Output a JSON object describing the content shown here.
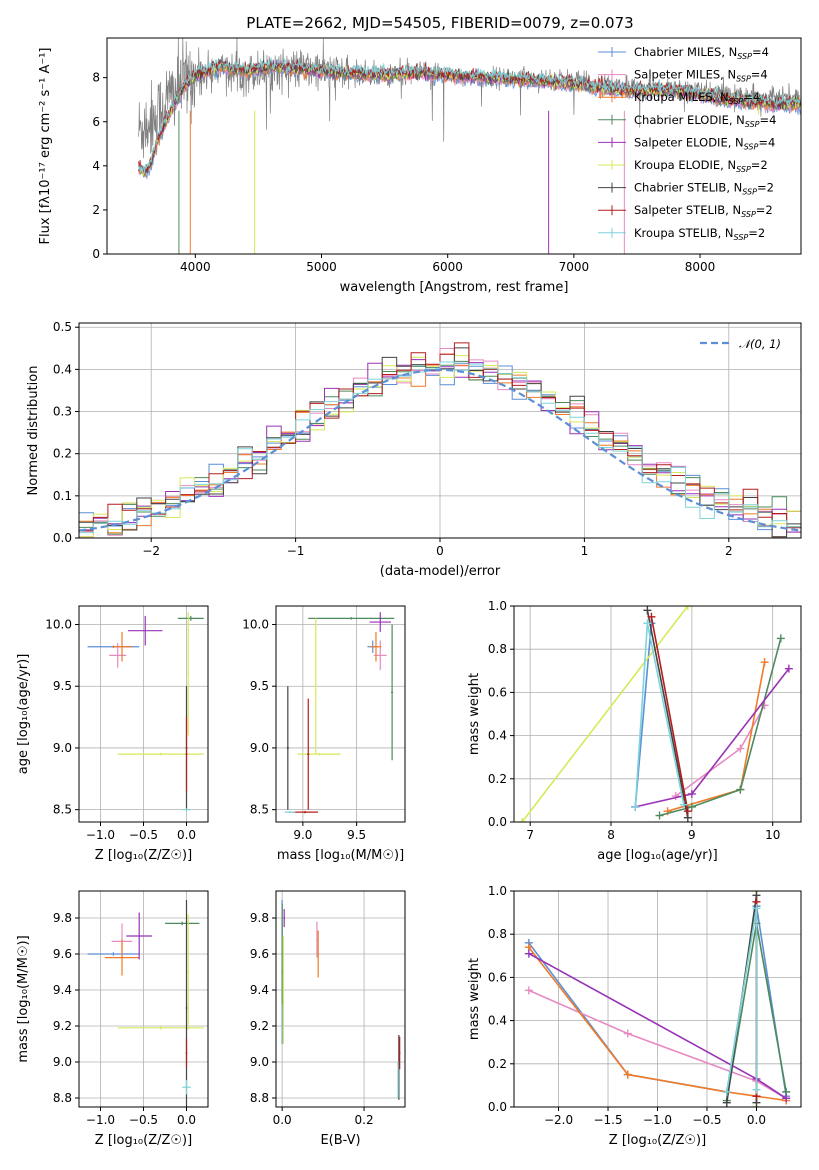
{
  "figure": {
    "title": "PLATE=2662, MJD=54505, FIBERID=0079, z=0.073"
  },
  "models": [
    {
      "name": "Chabrier MILES",
      "nssp": "4",
      "color": "#5b8fd6"
    },
    {
      "name": "Salpeter MILES",
      "nssp": "4",
      "color": "#e78ac3"
    },
    {
      "name": "Kroupa MILES",
      "nssp": "4",
      "color": "#f07b28"
    },
    {
      "name": "Chabrier ELODIE",
      "nssp": "4",
      "color": "#4f8a5e"
    },
    {
      "name": "Salpeter ELODIE",
      "nssp": "4",
      "color": "#9a32b6"
    },
    {
      "name": "Kroupa ELODIE",
      "nssp": "2",
      "color": "#d8e85a"
    },
    {
      "name": "Chabrier STELIB",
      "nssp": "2",
      "color": "#444444"
    },
    {
      "name": "Salpeter STELIB",
      "nssp": "2",
      "color": "#b41d1d"
    },
    {
      "name": "Kroupa STELIB",
      "nssp": "2",
      "color": "#7fd3da"
    }
  ],
  "chart_data": [
    {
      "id": "spectrum",
      "type": "line",
      "xlabel": "wavelength [Angstrom, rest frame]",
      "ylabel": "Flux [fλ10⁻¹⁷ erg cm⁻² s⁻¹ A⁻¹]",
      "xlim": [
        3300,
        8800
      ],
      "ylim": [
        0,
        9.8
      ],
      "xticks": [
        4000,
        5000,
        6000,
        7000,
        8000
      ],
      "yticks": [
        0,
        2,
        4,
        6,
        8
      ],
      "observed_color": "#808080",
      "observed_continuum": [
        [
          3550,
          5.6
        ],
        [
          3700,
          6.3
        ],
        [
          3800,
          7.2
        ],
        [
          3900,
          7.8
        ],
        [
          4000,
          8.2
        ],
        [
          4200,
          8.4
        ],
        [
          4400,
          8.2
        ],
        [
          4600,
          8.4
        ],
        [
          4800,
          8.4
        ],
        [
          5000,
          8.3
        ],
        [
          5200,
          8.2
        ],
        [
          5500,
          8.1
        ],
        [
          5800,
          8.2
        ],
        [
          6000,
          8.1
        ],
        [
          6300,
          8.0
        ],
        [
          6600,
          8.0
        ],
        [
          7000,
          7.9
        ],
        [
          7200,
          7.7
        ],
        [
          7500,
          7.6
        ],
        [
          7800,
          7.5
        ],
        [
          8000,
          7.4
        ],
        [
          8200,
          7.3
        ],
        [
          8400,
          7.2
        ],
        [
          8600,
          7.1
        ],
        [
          8800,
          7.1
        ]
      ],
      "model_continuum": [
        [
          3550,
          3.9
        ],
        [
          3600,
          3.7
        ],
        [
          3650,
          4.1
        ],
        [
          3700,
          5.2
        ],
        [
          3800,
          6.4
        ],
        [
          3900,
          7.5
        ],
        [
          4000,
          8.1
        ],
        [
          4200,
          8.5
        ],
        [
          4400,
          8.3
        ],
        [
          4600,
          8.5
        ],
        [
          4800,
          8.4
        ],
        [
          5000,
          8.3
        ],
        [
          5200,
          8.2
        ],
        [
          5500,
          8.1
        ],
        [
          5800,
          8.2
        ],
        [
          6000,
          8.1
        ],
        [
          6300,
          8.0
        ],
        [
          6600,
          7.9
        ],
        [
          7000,
          7.7
        ],
        [
          7200,
          7.5
        ],
        [
          7500,
          7.4
        ],
        [
          7800,
          7.4
        ],
        [
          8000,
          7.2
        ],
        [
          8200,
          7.0
        ],
        [
          8400,
          6.9
        ],
        [
          8600,
          6.8
        ],
        [
          8800,
          6.8
        ]
      ],
      "legend_position": "right"
    },
    {
      "id": "residuals",
      "type": "bar",
      "xlabel": "(data-model)/error",
      "ylabel": "Normed distribution",
      "xlim": [
        -2.5,
        2.5
      ],
      "ylim": [
        0,
        0.51
      ],
      "xticks": [
        -2,
        -1,
        0,
        1,
        2
      ],
      "yticks": [
        0.0,
        0.1,
        0.2,
        0.3,
        0.4,
        0.5
      ],
      "bin_width": 0.1,
      "gaussian_label": "𝒩(0, 1)",
      "gaussian_color": "#5b8fd6",
      "legend_position": "upper right",
      "grid": true
    },
    {
      "id": "age_vs_Z",
      "type": "scatter",
      "xlabel": "Z [log₁₀(Z/Z☉)]",
      "ylabel": "age  [log₁₀(age/yr)]",
      "xlim": [
        -1.25,
        0.25
      ],
      "ylim": [
        8.4,
        10.15
      ],
      "xticks": [
        -1.0,
        -0.5,
        0.0
      ],
      "yticks": [
        8.5,
        9.0,
        9.5,
        10.0
      ],
      "crosses": [
        {
          "m": 0,
          "x": -0.85,
          "y": 9.82,
          "ex": 0.3,
          "ey": 0.01
        },
        {
          "m": 1,
          "x": -0.8,
          "y": 9.75,
          "ex": 0.1,
          "ey": 0.1
        },
        {
          "m": 2,
          "x": -0.75,
          "y": 9.82,
          "ex": 0.12,
          "ey": 0.12
        },
        {
          "m": 3,
          "x": 0.05,
          "y": 10.05,
          "ex": 0.15,
          "ey": 0.02
        },
        {
          "m": 4,
          "x": -0.48,
          "y": 9.95,
          "ex": 0.2,
          "ey": 0.12
        },
        {
          "m": 5,
          "x": -0.3,
          "y": 8.95,
          "ex": 0.5,
          "ey": 0.01
        },
        {
          "m": 6,
          "x": 0.0,
          "y": 9.0,
          "ex": 0.01,
          "ey": 0.5
        },
        {
          "m": 7,
          "x": 0.0,
          "y": 8.95,
          "ex": 0.01,
          "ey": 0.3
        },
        {
          "m": 8,
          "x": 0.0,
          "y": 8.5,
          "ex": 0.05,
          "ey": 0.01
        },
        {
          "m": 5,
          "x": 0.02,
          "y": 9.6,
          "ex": 0.01,
          "ey": 0.5
        }
      ]
    },
    {
      "id": "age_vs_mass",
      "type": "scatter",
      "xlabel": "mass [log₁₀(M/M☉)]",
      "ylabel": "",
      "xlim": [
        8.75,
        9.95
      ],
      "ylim": [
        8.4,
        10.15
      ],
      "xticks": [
        9.0,
        9.5
      ],
      "yticks": [
        8.5,
        9.0,
        9.5,
        10.0
      ],
      "crosses": [
        {
          "m": 0,
          "x": 9.65,
          "y": 9.82,
          "ex": 0.05,
          "ey": 0.05
        },
        {
          "m": 1,
          "x": 9.72,
          "y": 9.75,
          "ex": 0.06,
          "ey": 0.12
        },
        {
          "m": 2,
          "x": 9.68,
          "y": 9.82,
          "ex": 0.05,
          "ey": 0.12
        },
        {
          "m": 3,
          "x": 9.45,
          "y": 10.05,
          "ex": 0.4,
          "ey": 0.01
        },
        {
          "m": 4,
          "x": 9.72,
          "y": 10.02,
          "ex": 0.1,
          "ey": 0.08
        },
        {
          "m": 5,
          "x": 9.15,
          "y": 8.95,
          "ex": 0.2,
          "ey": 0.01
        },
        {
          "m": 6,
          "x": 8.86,
          "y": 9.0,
          "ex": 0.01,
          "ey": 0.5
        },
        {
          "m": 7,
          "x": 9.02,
          "y": 8.48,
          "ex": 0.12,
          "ey": 0.01
        },
        {
          "m": 8,
          "x": 8.88,
          "y": 8.48,
          "ex": 0.05,
          "ey": 0.01
        },
        {
          "m": 3,
          "x": 9.83,
          "y": 9.45,
          "ex": 0.01,
          "ey": 0.55
        },
        {
          "m": 5,
          "x": 9.12,
          "y": 9.5,
          "ex": 0.01,
          "ey": 0.55
        },
        {
          "m": 7,
          "x": 9.05,
          "y": 8.95,
          "ex": 0.01,
          "ey": 0.45
        }
      ]
    },
    {
      "id": "weight_vs_age",
      "type": "line",
      "xlabel": "age  [log₁₀(age/yr)]",
      "ylabel": "mass weight",
      "xlim": [
        6.8,
        10.35
      ],
      "ylim": [
        0,
        1.0
      ],
      "xticks": [
        7,
        8,
        9,
        10
      ],
      "yticks": [
        0.0,
        0.2,
        0.4,
        0.6,
        0.8,
        1.0
      ],
      "grid": true,
      "series": [
        {
          "m": 0,
          "points": [
            [
              8.3,
              0.07
            ],
            [
              8.5,
              0.92
            ]
          ]
        },
        {
          "m": 1,
          "points": [
            [
              8.8,
              0.12
            ],
            [
              9.6,
              0.34
            ],
            [
              9.9,
              0.54
            ]
          ]
        },
        {
          "m": 2,
          "points": [
            [
              8.7,
              0.05
            ],
            [
              9.6,
              0.15
            ],
            [
              9.9,
              0.74
            ]
          ]
        },
        {
          "m": 3,
          "points": [
            [
              8.6,
              0.03
            ],
            [
              9.0,
              0.07
            ],
            [
              9.6,
              0.15
            ],
            [
              10.1,
              0.85
            ]
          ]
        },
        {
          "m": 4,
          "points": [
            [
              8.3,
              0.07
            ],
            [
              9.0,
              0.13
            ],
            [
              10.2,
              0.71
            ]
          ]
        },
        {
          "m": 5,
          "points": [
            [
              6.9,
              0.0
            ],
            [
              8.95,
              1.0
            ]
          ]
        },
        {
          "m": 6,
          "points": [
            [
              8.45,
              0.98
            ],
            [
              8.95,
              0.02
            ]
          ]
        },
        {
          "m": 7,
          "points": [
            [
              8.5,
              0.95
            ],
            [
              8.95,
              0.05
            ]
          ]
        },
        {
          "m": 8,
          "points": [
            [
              8.3,
              0.07
            ],
            [
              8.45,
              0.92
            ],
            [
              8.9,
              0.08
            ]
          ]
        }
      ]
    },
    {
      "id": "mass_vs_Z",
      "type": "scatter",
      "xlabel": "Z [log₁₀(Z/Z☉)]",
      "ylabel": "mass [log₁₀(M/M☉)]",
      "xlim": [
        -1.25,
        0.25
      ],
      "ylim": [
        8.75,
        9.95
      ],
      "xticks": [
        -1.0,
        -0.5,
        0.0
      ],
      "yticks": [
        8.8,
        9.0,
        9.2,
        9.4,
        9.6,
        9.8
      ],
      "crosses": [
        {
          "m": 0,
          "x": -0.85,
          "y": 9.6,
          "ex": 0.3,
          "ey": 0.01
        },
        {
          "m": 1,
          "x": -0.75,
          "y": 9.67,
          "ex": 0.12,
          "ey": 0.1
        },
        {
          "m": 2,
          "x": -0.75,
          "y": 9.58,
          "ex": 0.2,
          "ey": 0.1
        },
        {
          "m": 3,
          "x": -0.05,
          "y": 9.77,
          "ex": 0.2,
          "ey": 0.01
        },
        {
          "m": 4,
          "x": -0.55,
          "y": 9.7,
          "ex": 0.15,
          "ey": 0.13
        },
        {
          "m": 5,
          "x": -0.3,
          "y": 9.19,
          "ex": 0.5,
          "ey": 0.01
        },
        {
          "m": 5,
          "x": 0.02,
          "y": 9.5,
          "ex": 0.01,
          "ey": 0.32
        },
        {
          "m": 6,
          "x": 0.0,
          "y": 9.3,
          "ex": 0.01,
          "ey": 0.6
        },
        {
          "m": 7,
          "x": 0.0,
          "y": 9.05,
          "ex": 0.01,
          "ey": 0.08
        },
        {
          "m": 8,
          "x": 0.0,
          "y": 8.86,
          "ex": 0.05,
          "ey": 0.04
        }
      ]
    },
    {
      "id": "mass_vs_ebv",
      "type": "scatter",
      "xlabel": "E(B-V)",
      "ylabel": "",
      "xlim": [
        -0.015,
        0.3
      ],
      "ylim": [
        8.75,
        9.95
      ],
      "xticks": [
        0.0,
        0.2
      ],
      "yticks": [
        8.8,
        9.0,
        9.2,
        9.4,
        9.6,
        9.8
      ],
      "crosses": [
        {
          "m": 0,
          "x": 0.0,
          "y": 9.5,
          "ex": 0.002,
          "ey": 0.4
        },
        {
          "m": 1,
          "x": 0.085,
          "y": 9.68,
          "ex": 0.002,
          "ey": 0.1
        },
        {
          "m": 2,
          "x": 0.088,
          "y": 9.6,
          "ex": 0.002,
          "ey": 0.13
        },
        {
          "m": 3,
          "x": 0.0,
          "y": 9.6,
          "ex": 0.002,
          "ey": 0.28
        },
        {
          "m": 4,
          "x": 0.005,
          "y": 9.8,
          "ex": 0.002,
          "ey": 0.05
        },
        {
          "m": 5,
          "x": 0.003,
          "y": 9.4,
          "ex": 0.002,
          "ey": 0.3
        },
        {
          "m": 6,
          "x": 0.285,
          "y": 8.97,
          "ex": 0.002,
          "ey": 0.18
        },
        {
          "m": 7,
          "x": 0.287,
          "y": 9.05,
          "ex": 0.002,
          "ey": 0.09
        },
        {
          "m": 8,
          "x": 0.283,
          "y": 8.9,
          "ex": 0.002,
          "ey": 0.1
        }
      ]
    },
    {
      "id": "weight_vs_Z",
      "type": "line",
      "xlabel": "Z [log₁₀(Z/Z☉)]",
      "ylabel": "mass weight",
      "xlim": [
        -2.45,
        0.45
      ],
      "ylim": [
        0,
        1.0
      ],
      "xticks": [
        -2.0,
        -1.5,
        -1.0,
        -0.5,
        0.0
      ],
      "yticks": [
        0.0,
        0.2,
        0.4,
        0.6,
        0.8,
        1.0
      ],
      "grid": true,
      "series": [
        {
          "m": 0,
          "points": [
            [
              -2.3,
              0.76
            ],
            [
              -1.3,
              0.15
            ],
            [
              -0.3,
              0.07
            ],
            [
              0.0,
              0.93
            ],
            [
              0.3,
              0.05
            ]
          ]
        },
        {
          "m": 1,
          "points": [
            [
              -2.3,
              0.54
            ],
            [
              -1.3,
              0.34
            ],
            [
              0.0,
              0.12
            ],
            [
              0.3,
              0.04
            ]
          ]
        },
        {
          "m": 2,
          "points": [
            [
              -2.3,
              0.74
            ],
            [
              -1.3,
              0.15
            ],
            [
              -0.3,
              0.07
            ],
            [
              0.0,
              0.05
            ],
            [
              0.3,
              0.03
            ]
          ]
        },
        {
          "m": 3,
          "points": [
            [
              -0.3,
              0.03
            ],
            [
              0.0,
              0.85
            ],
            [
              0.3,
              0.07
            ]
          ]
        },
        {
          "m": 4,
          "points": [
            [
              -2.3,
              0.71
            ],
            [
              0.0,
              0.13
            ],
            [
              0.3,
              0.04
            ]
          ]
        },
        {
          "m": 5,
          "points": [
            [
              0.0,
              1.0
            ],
            [
              0.0,
              0.0
            ]
          ]
        },
        {
          "m": 6,
          "points": [
            [
              -0.3,
              0.02
            ],
            [
              0.0,
              0.98
            ],
            [
              0.0,
              0.02
            ]
          ]
        },
        {
          "m": 7,
          "points": [
            [
              0.0,
              0.05
            ],
            [
              0.0,
              0.95
            ]
          ]
        },
        {
          "m": 8,
          "points": [
            [
              -0.3,
              0.07
            ],
            [
              0.0,
              0.92
            ],
            [
              0.0,
              0.08
            ]
          ]
        }
      ]
    }
  ]
}
